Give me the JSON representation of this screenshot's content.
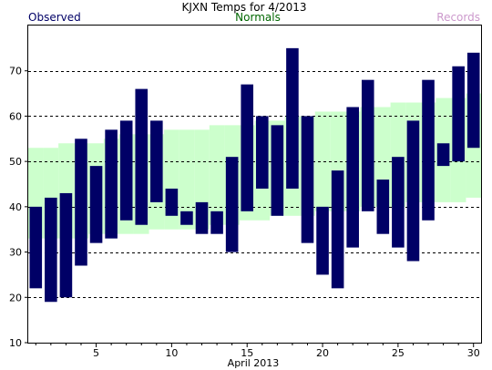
{
  "chart_data": {
    "type": "bar",
    "title": "KJXN Temps for 4/2013",
    "legend": {
      "observed": "Observed",
      "normals": "Normals",
      "records": "Records"
    },
    "legend_placement": "top",
    "xlabel": "April 2013",
    "ylabel": "",
    "xlim": [
      0.5,
      30.5
    ],
    "ylim": [
      10,
      80
    ],
    "x_ticks": [
      5,
      10,
      15,
      20,
      25,
      30
    ],
    "y_ticks": [
      10,
      20,
      30,
      40,
      50,
      60,
      70
    ],
    "grid": "horizontal dashed",
    "days": [
      1,
      2,
      3,
      4,
      5,
      6,
      7,
      8,
      9,
      10,
      11,
      12,
      13,
      14,
      15,
      16,
      17,
      18,
      19,
      20,
      21,
      22,
      23,
      24,
      25,
      26,
      27,
      28,
      29,
      30
    ],
    "series": [
      {
        "name": "Observed",
        "high": [
          40,
          42,
          43,
          55,
          49,
          57,
          59,
          66,
          59,
          44,
          39,
          41,
          39,
          51,
          67,
          60,
          58,
          75,
          60,
          40,
          48,
          62,
          68,
          46,
          51,
          59,
          68,
          54,
          71,
          74
        ],
        "low": [
          22,
          19,
          20,
          27,
          32,
          33,
          37,
          36,
          41,
          38,
          36,
          34,
          34,
          30,
          39,
          44,
          38,
          44,
          32,
          25,
          22,
          31,
          39,
          34,
          31,
          28,
          37,
          49,
          50,
          53
        ]
      },
      {
        "name": "Normals",
        "high": [
          53,
          53,
          54,
          54,
          54,
          55,
          56,
          56,
          56,
          57,
          57,
          57,
          58,
          58,
          58,
          59,
          59,
          60,
          60,
          61,
          61,
          61,
          62,
          62,
          63,
          63,
          63,
          64,
          64,
          65
        ],
        "low": [
          33,
          33,
          33,
          33,
          34,
          34,
          34,
          34,
          35,
          35,
          35,
          35,
          36,
          36,
          37,
          37,
          38,
          38,
          38,
          39,
          39,
          39,
          40,
          40,
          40,
          41,
          41,
          41,
          41,
          42
        ]
      }
    ],
    "colors": {
      "observed": "#000066",
      "normals": "#ccffcc",
      "records_text": "#cc99cc",
      "normals_text": "#006600",
      "observed_text": "#000066"
    }
  }
}
